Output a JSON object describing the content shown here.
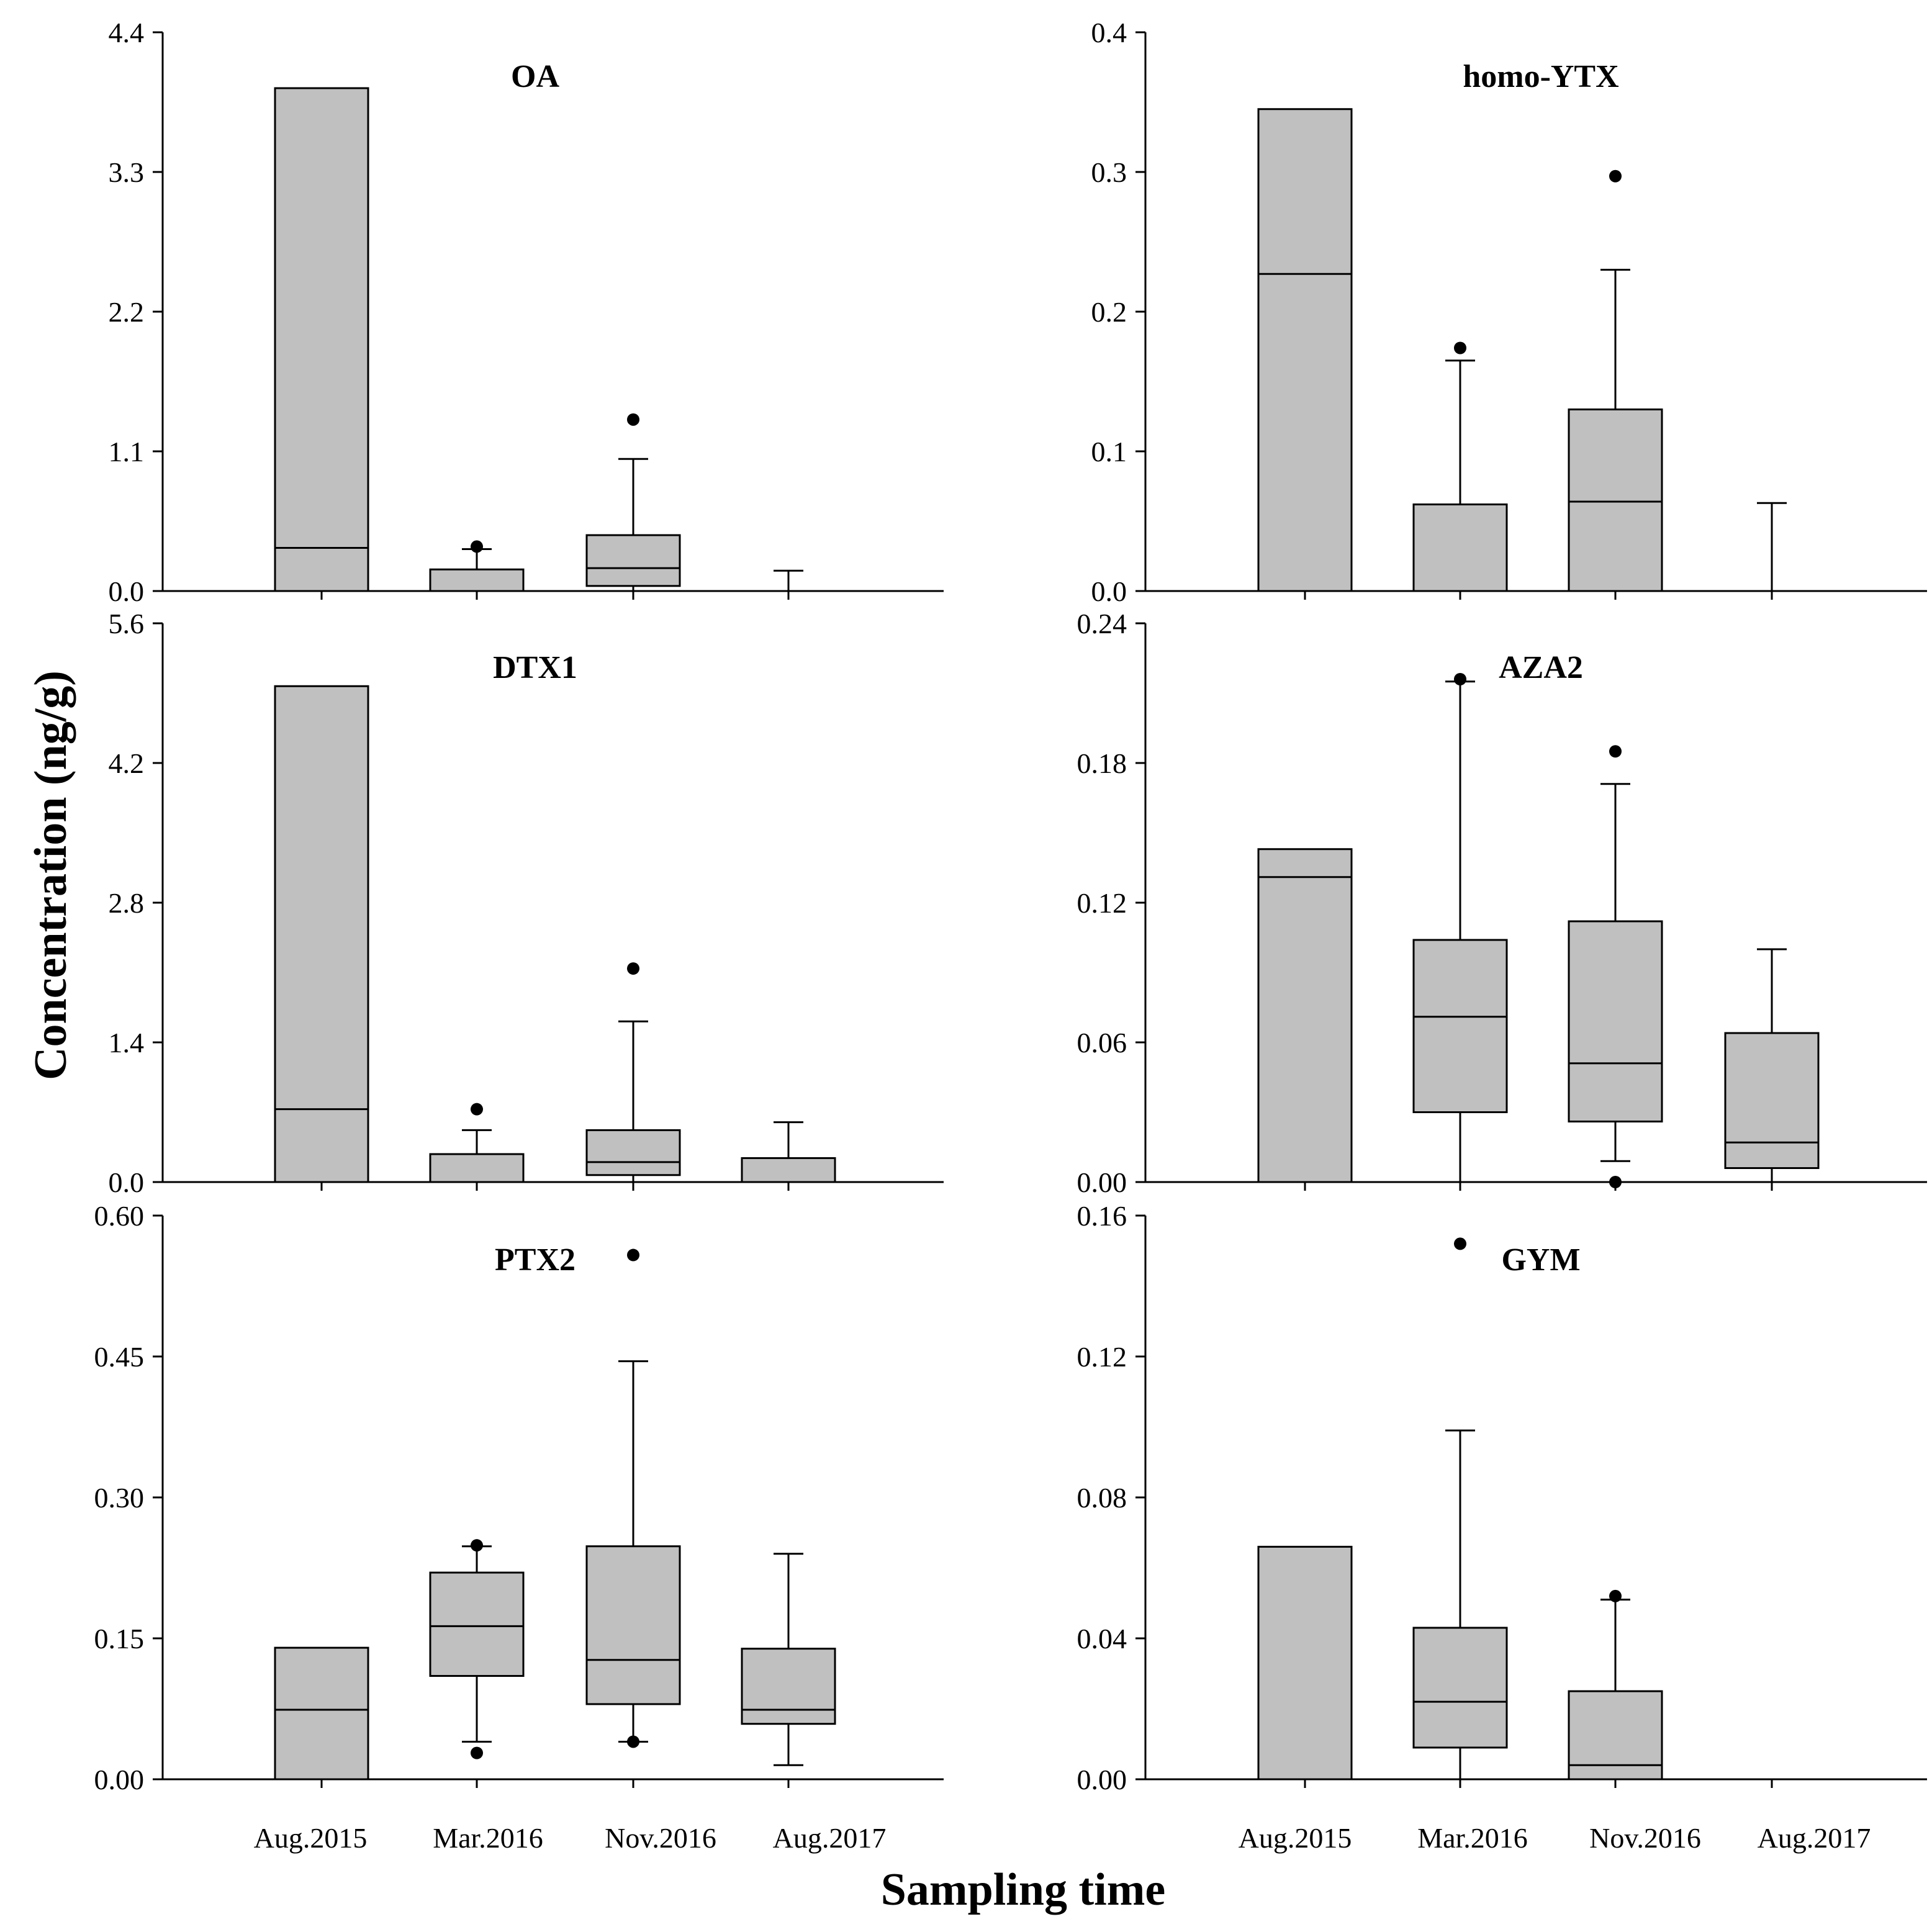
{
  "figure": {
    "ylabel": "Concentration (ng/g)",
    "xlabel": "Sampling time",
    "categories": [
      "Aug.2015",
      "Mar.2016",
      "Nov.2016",
      "Aug.2017"
    ]
  },
  "chart_data": [
    {
      "type": "box",
      "title": "OA",
      "categories": [
        "Aug.2015",
        "Mar.2016",
        "Nov.2016",
        "Aug.2017"
      ],
      "ylim": [
        0,
        4.4
      ],
      "yticks": [
        "0.0",
        "1.1",
        "2.2",
        "3.3",
        "4.4"
      ],
      "boxes": [
        {
          "category": "Aug.2015",
          "q1": 0.0,
          "median": 0.34,
          "q3": 3.96,
          "whisker_low": null,
          "whisker_high": null,
          "outliers": []
        },
        {
          "category": "Mar.2016",
          "q1": 0.0,
          "median": 0.0,
          "q3": 0.17,
          "whisker_low": null,
          "whisker_high": 0.33,
          "outliers": [
            0.35
          ]
        },
        {
          "category": "Nov.2016",
          "q1": 0.04,
          "median": 0.18,
          "q3": 0.44,
          "whisker_low": 0.0,
          "whisker_high": 1.04,
          "outliers": [
            1.35
          ]
        },
        {
          "category": "Aug.2017",
          "q1": null,
          "median": null,
          "q3": null,
          "whisker_low": 0.0,
          "whisker_high": 0.16,
          "outliers": []
        }
      ]
    },
    {
      "type": "box",
      "title": "homo-YTX",
      "categories": [
        "Aug.2015",
        "Mar.2016",
        "Nov.2016",
        "Aug.2017"
      ],
      "ylim": [
        0,
        0.4
      ],
      "yticks": [
        "0.0",
        "0.1",
        "0.2",
        "0.3",
        "0.4"
      ],
      "boxes": [
        {
          "category": "Aug.2015",
          "q1": 0.0,
          "median": 0.227,
          "q3": 0.345,
          "whisker_low": null,
          "whisker_high": null,
          "outliers": []
        },
        {
          "category": "Mar.2016",
          "q1": 0.0,
          "median": 0.0,
          "q3": 0.062,
          "whisker_low": null,
          "whisker_high": 0.165,
          "outliers": [
            0.174
          ]
        },
        {
          "category": "Nov.2016",
          "q1": 0.0,
          "median": 0.064,
          "q3": 0.13,
          "whisker_low": null,
          "whisker_high": 0.23,
          "outliers": [
            0.297
          ]
        },
        {
          "category": "Aug.2017",
          "q1": null,
          "median": null,
          "q3": null,
          "whisker_low": 0.0,
          "whisker_high": 0.063,
          "outliers": []
        }
      ]
    },
    {
      "type": "box",
      "title": "DTX1",
      "categories": [
        "Aug.2015",
        "Mar.2016",
        "Nov.2016",
        "Aug.2017"
      ],
      "ylim": [
        0,
        5.6
      ],
      "yticks": [
        "0.0",
        "1.4",
        "2.8",
        "4.2",
        "5.6"
      ],
      "boxes": [
        {
          "category": "Aug.2015",
          "q1": 0.0,
          "median": 0.73,
          "q3": 4.97,
          "whisker_low": null,
          "whisker_high": null,
          "outliers": []
        },
        {
          "category": "Mar.2016",
          "q1": 0.0,
          "median": 0.0,
          "q3": 0.28,
          "whisker_low": null,
          "whisker_high": 0.52,
          "outliers": [
            0.73
          ]
        },
        {
          "category": "Nov.2016",
          "q1": 0.07,
          "median": 0.2,
          "q3": 0.52,
          "whisker_low": 0.0,
          "whisker_high": 1.61,
          "outliers": [
            2.14
          ]
        },
        {
          "category": "Aug.2017",
          "q1": 0.0,
          "median": 0.0,
          "q3": 0.24,
          "whisker_low": null,
          "whisker_high": 0.6,
          "outliers": []
        }
      ]
    },
    {
      "type": "box",
      "title": "AZA2",
      "categories": [
        "Aug.2015",
        "Mar.2016",
        "Nov.2016",
        "Aug.2017"
      ],
      "ylim": [
        0,
        0.24
      ],
      "yticks": [
        "0.00",
        "0.06",
        "0.12",
        "0.18",
        "0.24"
      ],
      "boxes": [
        {
          "category": "Aug.2015",
          "q1": 0.0,
          "median": 0.131,
          "q3": 0.143,
          "whisker_low": null,
          "whisker_high": null,
          "outliers": []
        },
        {
          "category": "Mar.2016",
          "q1": 0.03,
          "median": 0.071,
          "q3": 0.104,
          "whisker_low": 0.0,
          "whisker_high": 0.215,
          "outliers": [
            0.216
          ]
        },
        {
          "category": "Nov.2016",
          "q1": 0.026,
          "median": 0.051,
          "q3": 0.112,
          "whisker_low": 0.009,
          "whisker_high": 0.171,
          "outliers": [
            0.185,
            0.0
          ]
        },
        {
          "category": "Aug.2017",
          "q1": 0.006,
          "median": 0.017,
          "q3": 0.064,
          "whisker_low": 0.0,
          "whisker_high": 0.1,
          "outliers": []
        }
      ]
    },
    {
      "type": "box",
      "title": "PTX2",
      "categories": [
        "Aug.2015",
        "Mar.2016",
        "Nov.2016",
        "Aug.2017"
      ],
      "ylim": [
        0,
        0.6
      ],
      "yticks": [
        "0.00",
        "0.15",
        "0.30",
        "0.45",
        "0.60"
      ],
      "boxes": [
        {
          "category": "Aug.2015",
          "q1": 0.0,
          "median": 0.074,
          "q3": 0.14,
          "whisker_low": null,
          "whisker_high": null,
          "outliers": []
        },
        {
          "category": "Mar.2016",
          "q1": 0.11,
          "median": 0.163,
          "q3": 0.22,
          "whisker_low": 0.04,
          "whisker_high": 0.248,
          "outliers": [
            0.249,
            0.028
          ]
        },
        {
          "category": "Nov.2016",
          "q1": 0.08,
          "median": 0.127,
          "q3": 0.248,
          "whisker_low": 0.04,
          "whisker_high": 0.445,
          "outliers": [
            0.558,
            0.04
          ]
        },
        {
          "category": "Aug.2017",
          "q1": 0.059,
          "median": 0.074,
          "q3": 0.139,
          "whisker_low": 0.015,
          "whisker_high": 0.24,
          "outliers": []
        }
      ]
    },
    {
      "type": "box",
      "title": "GYM",
      "categories": [
        "Aug.2015",
        "Mar.2016",
        "Nov.2016",
        "Aug.2017"
      ],
      "ylim": [
        0,
        0.16
      ],
      "yticks": [
        "0.00",
        "0.04",
        "0.08",
        "0.12",
        "0.16"
      ],
      "boxes": [
        {
          "category": "Aug.2015",
          "q1": 0.0,
          "median": 0.0,
          "q3": 0.066,
          "whisker_low": null,
          "whisker_high": null,
          "outliers": []
        },
        {
          "category": "Mar.2016",
          "q1": 0.009,
          "median": 0.022,
          "q3": 0.043,
          "whisker_low": 0.0,
          "whisker_high": 0.099,
          "outliers": [
            0.152
          ]
        },
        {
          "category": "Nov.2016",
          "q1": 0.0,
          "median": 0.004,
          "q3": 0.025,
          "whisker_low": null,
          "whisker_high": 0.051,
          "outliers": [
            0.052
          ]
        },
        {
          "category": "Aug.2017",
          "q1": null,
          "median": null,
          "q3": null,
          "whisker_low": null,
          "whisker_high": null,
          "outliers": []
        }
      ]
    }
  ]
}
